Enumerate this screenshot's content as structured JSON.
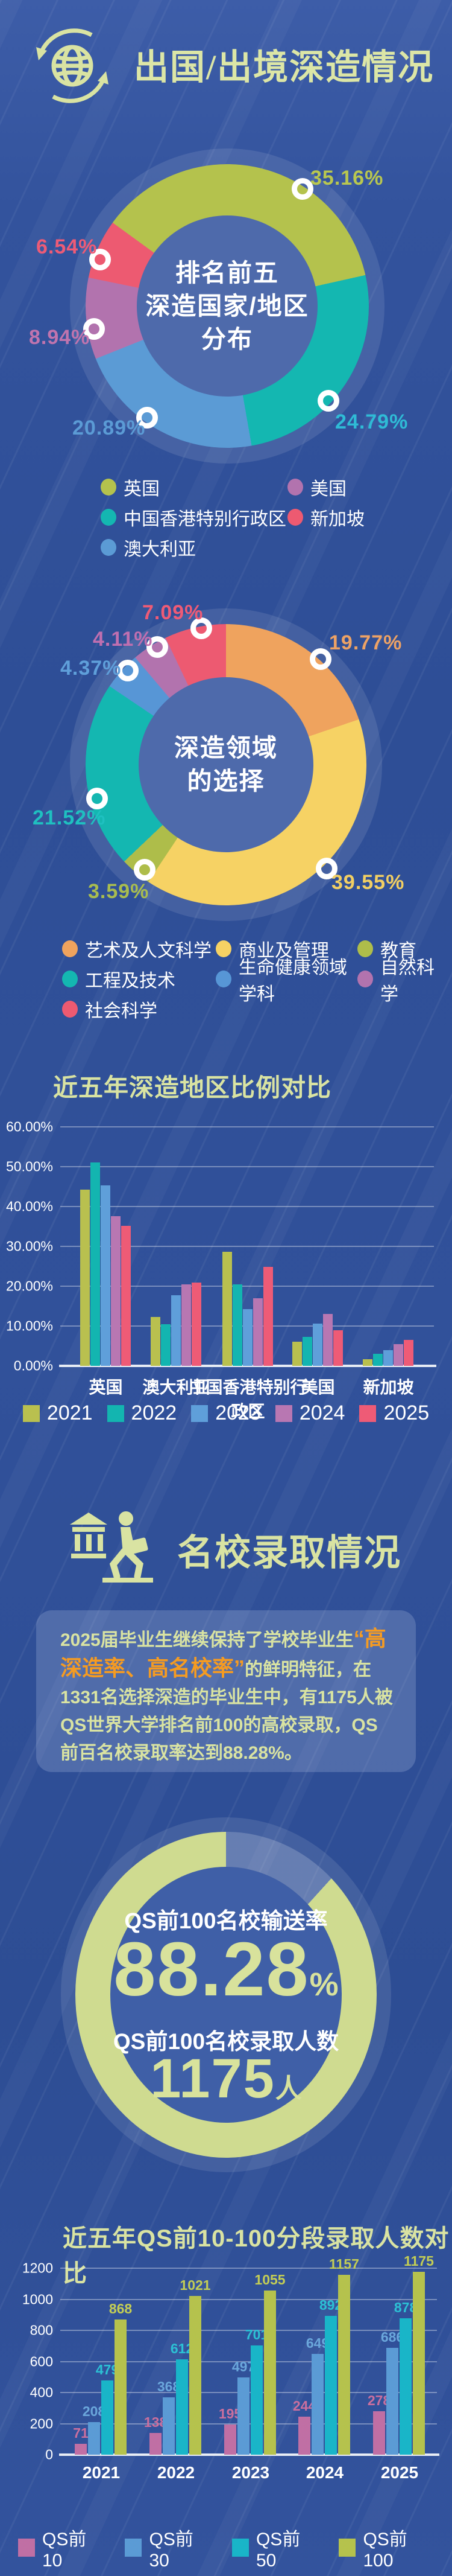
{
  "header": {
    "title": "出国/出境深造情况"
  },
  "admissions": {
    "title": "名校录取情况"
  },
  "admissions_card": {
    "text_before": "2025届毕业生继续保持了学校毕业生",
    "highlight": "“高深造率、高名校率”",
    "text_after": "的鲜明特征，在1331名选择深造的毕业生中，有1175人被QS世界大学排名前100的高校录取，QS前百名校录取率达到88.28%。"
  },
  "chart_data": [
    {
      "id": "regions_donut",
      "type": "pie",
      "title": "排名前五深造国家/地区分布",
      "center_text_lines": [
        "排名前五",
        "深造国家/地区",
        "分布"
      ],
      "labels": [
        "英国",
        "中国香港特别行政区",
        "澳大利亚",
        "美国",
        "新加坡"
      ],
      "values": [
        35.16,
        24.79,
        20.89,
        8.94,
        6.54
      ],
      "value_labels": [
        "35.16%",
        "24.79%",
        "20.89%",
        "8.94%",
        "6.54%"
      ],
      "colors": [
        "#b4c24d",
        "#14b7b1",
        "#5b9bd5",
        "#b273ae",
        "#ed5a71"
      ],
      "label_colors": [
        "#b9c74f",
        "#2fbbd6",
        "#5b9bd5",
        "#c074ae",
        "#ee5b76"
      ],
      "start_angle_deg": 306,
      "legend_items": [
        {
          "label": "英国",
          "color": "#b4c24d"
        },
        {
          "label": "美国",
          "color": "#b273ae"
        },
        {
          "label": "中国香港特别行政区",
          "color": "#14b7b1"
        },
        {
          "label": "新加坡",
          "color": "#ed5a71"
        },
        {
          "label": "澳大利亚",
          "color": "#5b9bd5"
        }
      ]
    },
    {
      "id": "fields_donut",
      "type": "pie",
      "title": "深造领域的选择",
      "center_text_lines": [
        "深造领域",
        "的选择"
      ],
      "labels": [
        "艺术及人文科学",
        "商业及管理",
        "教育",
        "工程及技术",
        "生命健康领域学科",
        "自然科学",
        "社会科学"
      ],
      "values": [
        19.77,
        39.55,
        3.59,
        21.52,
        4.37,
        4.11,
        7.09
      ],
      "value_labels": [
        "19.77%",
        "39.55%",
        "3.59%",
        "21.52%",
        "4.37%",
        "4.11%",
        "7.09%"
      ],
      "colors": [
        "#efa35e",
        "#f6d264",
        "#aebd4a",
        "#14b7b1",
        "#5796d6",
        "#b273ae",
        "#ed5a71"
      ],
      "label_colors": [
        "#eda265",
        "#f2cf63",
        "#a9bd4f",
        "#1fc0c0",
        "#5f9fda",
        "#c06fb0",
        "#ee5b76"
      ],
      "start_angle_deg": 0,
      "legend_items": [
        {
          "label": "艺术及人文科学",
          "color": "#efa35e"
        },
        {
          "label": "商业及管理",
          "color": "#f6d264"
        },
        {
          "label": "教育",
          "color": "#aebd4a"
        },
        {
          "label": "工程及技术",
          "color": "#14b7b1"
        },
        {
          "label": "生命健康领域学科",
          "color": "#5796d6"
        },
        {
          "label": "自然科学",
          "color": "#b273ae"
        },
        {
          "label": "社会科学",
          "color": "#ed5a71"
        }
      ]
    },
    {
      "id": "regions_bars",
      "type": "bar",
      "title": "近五年深造地区比例对比",
      "categories": [
        "英国",
        "澳大利亚",
        "中国香港特别行政区",
        "美国",
        "新加坡"
      ],
      "series": [
        {
          "name": "2021",
          "color": "#b9c04f",
          "values": [
            44.2,
            12.2,
            28.6,
            6.1,
            1.7
          ]
        },
        {
          "name": "2022",
          "color": "#13b5b0",
          "values": [
            51.0,
            10.5,
            20.5,
            7.3,
            3.0
          ]
        },
        {
          "name": "2023",
          "color": "#5f9fda",
          "values": [
            45.3,
            17.8,
            14.2,
            10.6,
            4.0
          ]
        },
        {
          "name": "2024",
          "color": "#b877b2",
          "values": [
            37.6,
            20.5,
            17.0,
            13.1,
            5.4
          ]
        },
        {
          "name": "2025",
          "color": "#ee5b76",
          "values": [
            35.16,
            20.89,
            24.79,
            8.94,
            6.54
          ]
        }
      ],
      "ylim": [
        0,
        60
      ],
      "ytick_step": 10,
      "ylabels": [
        "0.00%",
        "10.00%",
        "20.00%",
        "30.00%",
        "40.00%",
        "50.00%",
        "60.00%"
      ],
      "grid": true,
      "legend_position": "bottom"
    },
    {
      "id": "qs_gauge",
      "type": "pie",
      "subtype": "gauge",
      "percent": 88.28,
      "ring_color": "#cfdb90",
      "rate_label": "QS前100名校输送率",
      "rate_value": "88.28",
      "rate_unit": "%",
      "count_label": "QS前100名校录取人数",
      "count_value": "1175",
      "count_unit": "人"
    },
    {
      "id": "qs_bars",
      "type": "bar",
      "title": "近五年QS前10-100分段录取人数对比",
      "categories": [
        "2021",
        "2022",
        "2023",
        "2024",
        "2025"
      ],
      "series": [
        {
          "name": "QS前10",
          "color": "#c06fa4",
          "label_color": "#ca6f9e",
          "values": [
            71,
            138,
            195,
            244,
            278
          ]
        },
        {
          "name": "QS前30",
          "color": "#5b9bd5",
          "label_color": "#6aa6db",
          "values": [
            208,
            368,
            497,
            649,
            686
          ]
        },
        {
          "name": "QS前50",
          "color": "#19b5c8",
          "label_color": "#2cc0d4",
          "values": [
            479,
            612,
            701,
            892,
            878
          ]
        },
        {
          "name": "QS前100",
          "color": "#b5c24d",
          "label_color": "#c3cd55",
          "values": [
            868,
            1021,
            1055,
            1157,
            1175
          ]
        }
      ],
      "ylim": [
        0,
        1200
      ],
      "ytick_step": 200,
      "ylabels": [
        "0",
        "200",
        "400",
        "600",
        "800",
        "1000",
        "1200"
      ],
      "grid": true,
      "show_value_labels": true,
      "legend_position": "bottom"
    }
  ]
}
